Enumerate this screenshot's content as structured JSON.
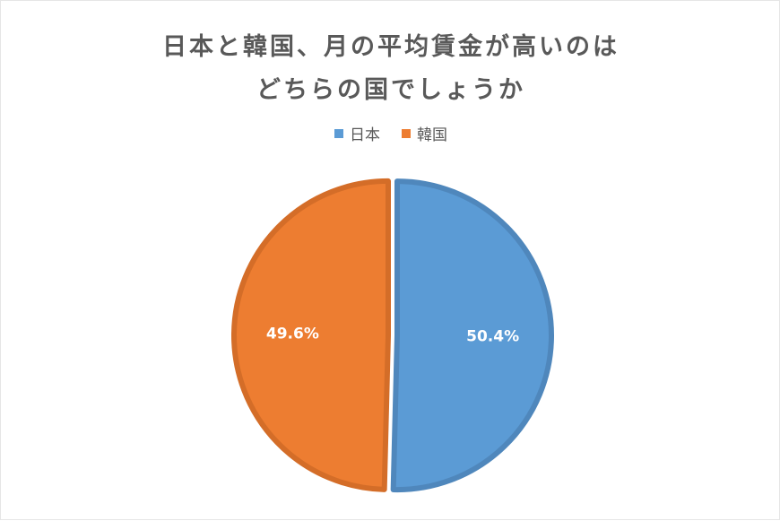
{
  "chart_data": {
    "type": "pie",
    "title_lines": [
      "日本と韓国、月の平均賃金が高いのは",
      "どちらの国でしょうか"
    ],
    "categories": [
      "日本",
      "韓国"
    ],
    "values": [
      50.4,
      49.6
    ],
    "labels": [
      "50.4%",
      "49.6%"
    ],
    "colors": [
      "#5b9bd5",
      "#ed7d31"
    ],
    "edge_colors": [
      "#4f87bc",
      "#d46d28"
    ],
    "legend_position": "top",
    "exploded": true,
    "start_angle": "12 o'clock, clockwise"
  }
}
